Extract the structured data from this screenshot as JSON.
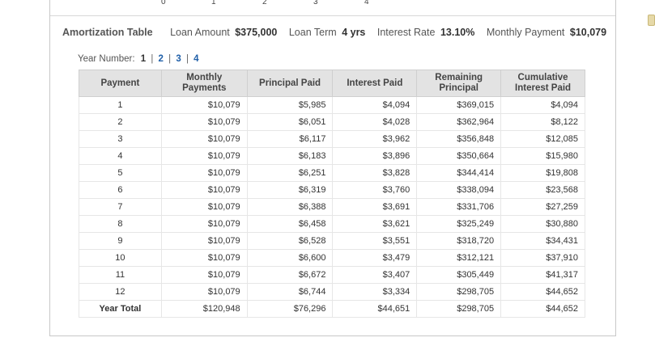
{
  "axis_ticks": [
    "0",
    "1",
    "2",
    "3",
    "4"
  ],
  "summary": {
    "title": "Amortization Table",
    "loan_amount_label": "Loan Amount",
    "loan_amount": "$375,000",
    "loan_term_label": "Loan Term",
    "loan_term": "4 yrs",
    "interest_rate_label": "Interest Rate",
    "interest_rate": "13.10%",
    "monthly_payment_label": "Monthly Payment",
    "monthly_payment": "$10,079"
  },
  "year_nav": {
    "label": "Year Number:",
    "years": [
      "1",
      "2",
      "3",
      "4"
    ],
    "separator": "|"
  },
  "table": {
    "headers": [
      "Payment",
      "Monthly Payments",
      "Principal Paid",
      "Interest Paid",
      "Remaining Principal",
      "Cumulative Interest Paid"
    ],
    "rows": [
      [
        "1",
        "$10,079",
        "$5,985",
        "$4,094",
        "$369,015",
        "$4,094"
      ],
      [
        "2",
        "$10,079",
        "$6,051",
        "$4,028",
        "$362,964",
        "$8,122"
      ],
      [
        "3",
        "$10,079",
        "$6,117",
        "$3,962",
        "$356,848",
        "$12,085"
      ],
      [
        "4",
        "$10,079",
        "$6,183",
        "$3,896",
        "$350,664",
        "$15,980"
      ],
      [
        "5",
        "$10,079",
        "$6,251",
        "$3,828",
        "$344,414",
        "$19,808"
      ],
      [
        "6",
        "$10,079",
        "$6,319",
        "$3,760",
        "$338,094",
        "$23,568"
      ],
      [
        "7",
        "$10,079",
        "$6,388",
        "$3,691",
        "$331,706",
        "$27,259"
      ],
      [
        "8",
        "$10,079",
        "$6,458",
        "$3,621",
        "$325,249",
        "$30,880"
      ],
      [
        "9",
        "$10,079",
        "$6,528",
        "$3,551",
        "$318,720",
        "$34,431"
      ],
      [
        "10",
        "$10,079",
        "$6,600",
        "$3,479",
        "$312,121",
        "$37,910"
      ],
      [
        "11",
        "$10,079",
        "$6,672",
        "$3,407",
        "$305,449",
        "$41,317"
      ],
      [
        "12",
        "$10,079",
        "$6,744",
        "$3,334",
        "$298,705",
        "$44,652"
      ]
    ],
    "total": [
      "Year Total",
      "$120,948",
      "$76,296",
      "$44,651",
      "$298,705",
      "$44,652"
    ]
  },
  "colors": {
    "header_bg": "#e3e3e3",
    "link": "#1f5fa8"
  }
}
